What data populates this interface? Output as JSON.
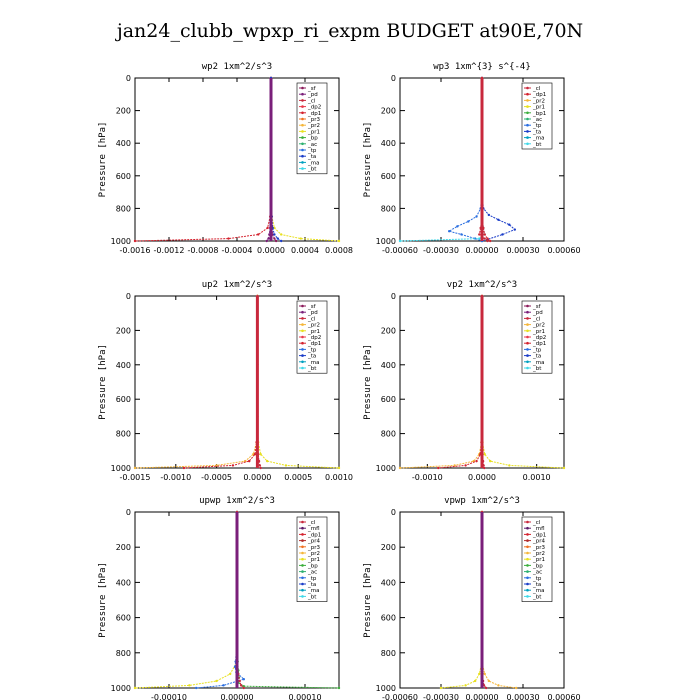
{
  "page": {
    "title": "jan24_clubb_wpxp_ri_expm  BUDGET at90E,70N"
  },
  "colors": {
    "_sf": "#8b1a5a",
    "_pd": "#7a1f7a",
    "_cl": "#c8283c",
    "_dp2": "#e8384a",
    "_dp1": "#d4222e",
    "_pr3": "#f07020",
    "_pr2": "#f5b63a",
    "_pr1": "#e8e020",
    "_bp": "#3cae3c",
    "_bp1": "#3cae3c",
    "_ac": "#2db070",
    "_tp": "#2a6ee0",
    "_ta": "#1a3cc8",
    "_ma": "#00a0c0",
    "_bt": "#40d8e8",
    "_mfl": "#5a1a6a",
    "_pr4": "#b02a2a"
  },
  "chart_data": [
    {
      "type": "line",
      "title": "wp2   1xm^2/s^3",
      "ylabel": "Pressure [hPa]",
      "ylim": [
        1000,
        0
      ],
      "xlim": [
        -0.0016,
        0.0008
      ],
      "xticks": [
        -0.0016,
        -0.0012,
        -0.0008,
        -0.0004,
        0.0,
        0.0004,
        0.0008
      ],
      "xtick_labels": [
        "-0.0016",
        "-0.0012",
        "-0.0008",
        "-0.0004",
        "0.0000",
        "0.0004",
        "0.0008"
      ],
      "yticks": [
        0,
        200,
        400,
        600,
        800,
        1000
      ],
      "legend": [
        "_sf",
        "_pd",
        "_cl",
        "_dp2",
        "_dp1",
        "_pr3",
        "_pr2",
        "_pr1",
        "_bp",
        "_ac",
        "_tp",
        "_ta",
        "_ma",
        "_bt"
      ],
      "series": [
        {
          "name": "_dp1",
          "pressure": [
            0,
            400,
            700,
            850,
            920,
            960,
            985,
            1000
          ],
          "values": [
            0,
            0,
            0,
            -1e-05,
            -4e-05,
            -0.00015,
            -0.0005,
            -0.0016
          ]
        },
        {
          "name": "_pr1",
          "pressure": [
            0,
            400,
            700,
            850,
            920,
            960,
            985,
            1000
          ],
          "values": [
            0,
            0,
            0,
            1e-05,
            4e-05,
            0.00012,
            0.00035,
            0.0008
          ]
        },
        {
          "name": "_sf",
          "pressure": [
            0,
            400,
            700,
            850,
            920,
            960,
            985,
            1000
          ],
          "values": [
            0,
            0,
            0,
            0,
            1e-05,
            2e-05,
            4e-05,
            6e-05
          ]
        },
        {
          "name": "_pd",
          "pressure": [
            0,
            400,
            700,
            850,
            920,
            960,
            985,
            1000
          ],
          "values": [
            0,
            0,
            0,
            0,
            -1e-05,
            -2e-05,
            -3e-05,
            -5e-05
          ]
        },
        {
          "name": "_ta",
          "pressure": [
            0,
            400,
            700,
            850,
            920,
            960,
            985,
            1000
          ],
          "values": [
            0,
            0,
            0,
            1e-05,
            2e-05,
            4e-05,
            8e-05,
            0.00012
          ]
        }
      ]
    },
    {
      "type": "line",
      "title": "wp3   1xm^{3} s^{-4}",
      "ylabel": "Pressure [hPa]",
      "ylim": [
        1000,
        0
      ],
      "xlim": [
        -0.0006,
        0.0006
      ],
      "xticks": [
        -0.0006,
        -0.0003,
        0.0,
        0.0003,
        0.0006
      ],
      "xtick_labels": [
        "-0.00060",
        "-0.00030",
        "0.00000",
        "0.00030",
        "0.00060"
      ],
      "yticks": [
        0,
        200,
        400,
        600,
        800,
        1000
      ],
      "legend": [
        "_cl",
        "_dp1",
        "_pr2",
        "_pr1",
        "_bp1",
        "_ac",
        "_tp",
        "_ta",
        "_ma",
        "_bt"
      ],
      "series": [
        {
          "name": "_ta",
          "pressure": [
            0,
            400,
            700,
            800,
            840,
            870,
            900,
            930,
            960,
            990,
            1000
          ],
          "values": [
            0,
            0,
            0,
            1e-05,
            5e-05,
            0.00012,
            0.0002,
            0.00024,
            0.00015,
            4e-05,
            0
          ]
        },
        {
          "name": "_tp",
          "pressure": [
            0,
            400,
            700,
            800,
            850,
            880,
            910,
            940,
            960,
            985,
            1000
          ],
          "values": [
            0,
            0,
            0,
            -1e-05,
            -4e-05,
            -0.0001,
            -0.00018,
            -0.00024,
            -0.00015,
            -5e-05,
            0
          ]
        },
        {
          "name": "_bt",
          "pressure": [
            0,
            400,
            700,
            850,
            920,
            960,
            985,
            1000
          ],
          "values": [
            0,
            0,
            0,
            0,
            1e-05,
            2e-05,
            -2e-05,
            -0.0006
          ]
        },
        {
          "name": "_cl",
          "pressure": [
            0,
            400,
            700,
            850,
            920,
            960,
            985,
            1000
          ],
          "values": [
            0,
            0,
            0,
            0,
            -1e-05,
            -2e-05,
            2e-05,
            4e-05
          ]
        },
        {
          "name": "_dp1",
          "pressure": [
            0,
            400,
            700,
            850,
            920,
            960,
            985,
            1000
          ],
          "values": [
            0,
            0,
            0,
            0,
            1e-05,
            2e-05,
            4e-05,
            6e-05
          ]
        }
      ]
    },
    {
      "type": "line",
      "title": "up2   1xm^2/s^3",
      "ylabel": "Pressure [hPa]",
      "ylim": [
        1000,
        0
      ],
      "xlim": [
        -0.0015,
        0.001
      ],
      "xticks": [
        -0.0015,
        -0.001,
        -0.0005,
        0.0,
        0.0005,
        0.001
      ],
      "xtick_labels": [
        "-0.0015",
        "-0.0010",
        "-0.0005",
        "0.0000",
        "0.0005",
        "0.0010"
      ],
      "yticks": [
        0,
        200,
        400,
        600,
        800,
        1000
      ],
      "legend": [
        "_sf",
        "_pd",
        "_cl",
        "_pr2",
        "_pr1",
        "_dp2",
        "_dp1",
        "_tp",
        "_ta",
        "_ma",
        "_bt"
      ],
      "series": [
        {
          "name": "_pr2",
          "pressure": [
            0,
            400,
            700,
            850,
            920,
            960,
            985,
            1000
          ],
          "values": [
            0,
            0,
            0,
            -1e-05,
            -5e-05,
            -0.00015,
            -0.0005,
            -0.0015
          ]
        },
        {
          "name": "_dp1",
          "pressure": [
            0,
            400,
            700,
            850,
            920,
            960,
            985,
            1000
          ],
          "values": [
            0,
            0,
            0,
            -1e-05,
            -3e-05,
            -0.0001,
            -0.0003,
            -0.0009
          ]
        },
        {
          "name": "_pr1",
          "pressure": [
            0,
            400,
            700,
            850,
            920,
            960,
            985,
            1000
          ],
          "values": [
            0,
            0,
            0,
            1e-05,
            4e-05,
            0.00012,
            0.00035,
            0.001
          ]
        },
        {
          "name": "_cl",
          "pressure": [
            0,
            400,
            700,
            850,
            920,
            960,
            985,
            1000
          ],
          "values": [
            0,
            0,
            0,
            0,
            1e-05,
            2e-05,
            3e-05,
            4e-05
          ]
        }
      ]
    },
    {
      "type": "line",
      "title": "vp2   1xm^2/s^3",
      "ylabel": "Pressure [hPa]",
      "ylim": [
        1000,
        0
      ],
      "xlim": [
        -0.0015,
        0.0015
      ],
      "xticks": [
        -0.001,
        0.0,
        0.001
      ],
      "xtick_labels": [
        "-0.0010",
        "0.0000",
        "0.0010"
      ],
      "yticks": [
        0,
        200,
        400,
        600,
        800,
        1000
      ],
      "legend": [
        "_sf",
        "_pd",
        "_cl",
        "_pr2",
        "_pr1",
        "_dp2",
        "_dp1",
        "_tp",
        "_ta",
        "_ma",
        "_bt"
      ],
      "series": [
        {
          "name": "_pr2",
          "pressure": [
            0,
            400,
            700,
            850,
            920,
            960,
            985,
            1000
          ],
          "values": [
            0,
            0,
            0,
            -1e-05,
            -5e-05,
            -0.00015,
            -0.0005,
            -0.0015
          ]
        },
        {
          "name": "_pr1",
          "pressure": [
            0,
            400,
            700,
            850,
            920,
            960,
            985,
            1000
          ],
          "values": [
            0,
            0,
            0,
            1e-05,
            5e-05,
            0.00015,
            0.0005,
            0.0015
          ]
        },
        {
          "name": "_dp1",
          "pressure": [
            0,
            400,
            700,
            850,
            920,
            960,
            985,
            1000
          ],
          "values": [
            0,
            0,
            0,
            -1e-05,
            -3e-05,
            -0.0001,
            -0.0003,
            -0.0008
          ]
        },
        {
          "name": "_cl",
          "pressure": [
            0,
            400,
            700,
            850,
            920,
            960,
            985,
            1000
          ],
          "values": [
            0,
            0,
            0,
            0,
            1e-05,
            2e-05,
            3e-05,
            4e-05
          ]
        }
      ]
    },
    {
      "type": "line",
      "title": "upwp   1xm^2/s^3",
      "ylabel": "Pressure [hPa]",
      "ylim": [
        1000,
        0
      ],
      "xlim": [
        -0.00015,
        0.00015
      ],
      "xticks": [
        -0.0001,
        0.0,
        0.0001
      ],
      "xtick_labels": [
        "-0.00010",
        "0.00000",
        "0.00010"
      ],
      "yticks": [
        0,
        200,
        400,
        600,
        800,
        1000
      ],
      "legend": [
        "_cl",
        "_mfl",
        "_dp1",
        "_pr4",
        "_pr3",
        "_pr2",
        "_pr1",
        "_bp",
        "_ac",
        "_tp",
        "_ta",
        "_ma",
        "_bt"
      ],
      "series": [
        {
          "name": "_bp",
          "pressure": [
            0,
            400,
            700,
            850,
            900,
            940,
            970,
            990,
            1000
          ],
          "values": [
            0,
            0,
            0,
            1e-06,
            2e-06,
            3e-06,
            2e-06,
            1e-05,
            0.00015
          ]
        },
        {
          "name": "_pr1",
          "pressure": [
            0,
            400,
            700,
            850,
            920,
            960,
            985,
            1000
          ],
          "values": [
            0,
            0,
            0,
            0,
            -1e-05,
            -3e-05,
            -7e-05,
            -0.00015
          ]
        },
        {
          "name": "_tp",
          "pressure": [
            0,
            400,
            700,
            850,
            880,
            910,
            950,
            985,
            1000
          ],
          "values": [
            0,
            0,
            0,
            -2e-06,
            -3e-06,
            -1e-06,
            1e-05,
            -2e-05,
            -6e-05
          ]
        },
        {
          "name": "_cl",
          "pressure": [
            0,
            400,
            700,
            850,
            920,
            960,
            985,
            1000
          ],
          "values": [
            0,
            0,
            0,
            0,
            2e-06,
            4e-06,
            6e-06,
            1e-05
          ]
        }
      ]
    },
    {
      "type": "line",
      "title": "vpwp   1xm^2/s^3",
      "ylabel": "Pressure [hPa]",
      "ylim": [
        1000,
        0
      ],
      "xlim": [
        -0.0006,
        0.0006
      ],
      "xticks": [
        -0.0006,
        -0.0003,
        0.0,
        0.0003,
        0.0006
      ],
      "xtick_labels": [
        "-0.00060",
        "-0.00030",
        "0.00000",
        "0.00030",
        "0.00060"
      ],
      "yticks": [
        0,
        200,
        400,
        600,
        800,
        1000
      ],
      "legend": [
        "_cl",
        "_mfl",
        "_dp1",
        "_pr4",
        "_pr3",
        "_pr2",
        "_pr1",
        "_bp",
        "_ac",
        "_tp",
        "_ta",
        "_ma",
        "_bt"
      ],
      "series": [
        {
          "name": "_pr1",
          "pressure": [
            0,
            400,
            700,
            850,
            920,
            960,
            985,
            1000
          ],
          "values": [
            0,
            0,
            0,
            0,
            -2e-05,
            -5e-05,
            -0.00012,
            -0.0003
          ]
        },
        {
          "name": "_pr2",
          "pressure": [
            0,
            400,
            700,
            850,
            920,
            960,
            985,
            1000
          ],
          "values": [
            0,
            0,
            0,
            0,
            2e-05,
            5e-05,
            0.00012,
            0.00025
          ]
        },
        {
          "name": "_cl",
          "pressure": [
            0,
            400,
            700,
            850,
            920,
            960,
            985,
            1000
          ],
          "values": [
            0,
            0,
            0,
            0,
            4e-06,
            8e-06,
            1.5e-05,
            3e-05
          ]
        }
      ]
    }
  ]
}
